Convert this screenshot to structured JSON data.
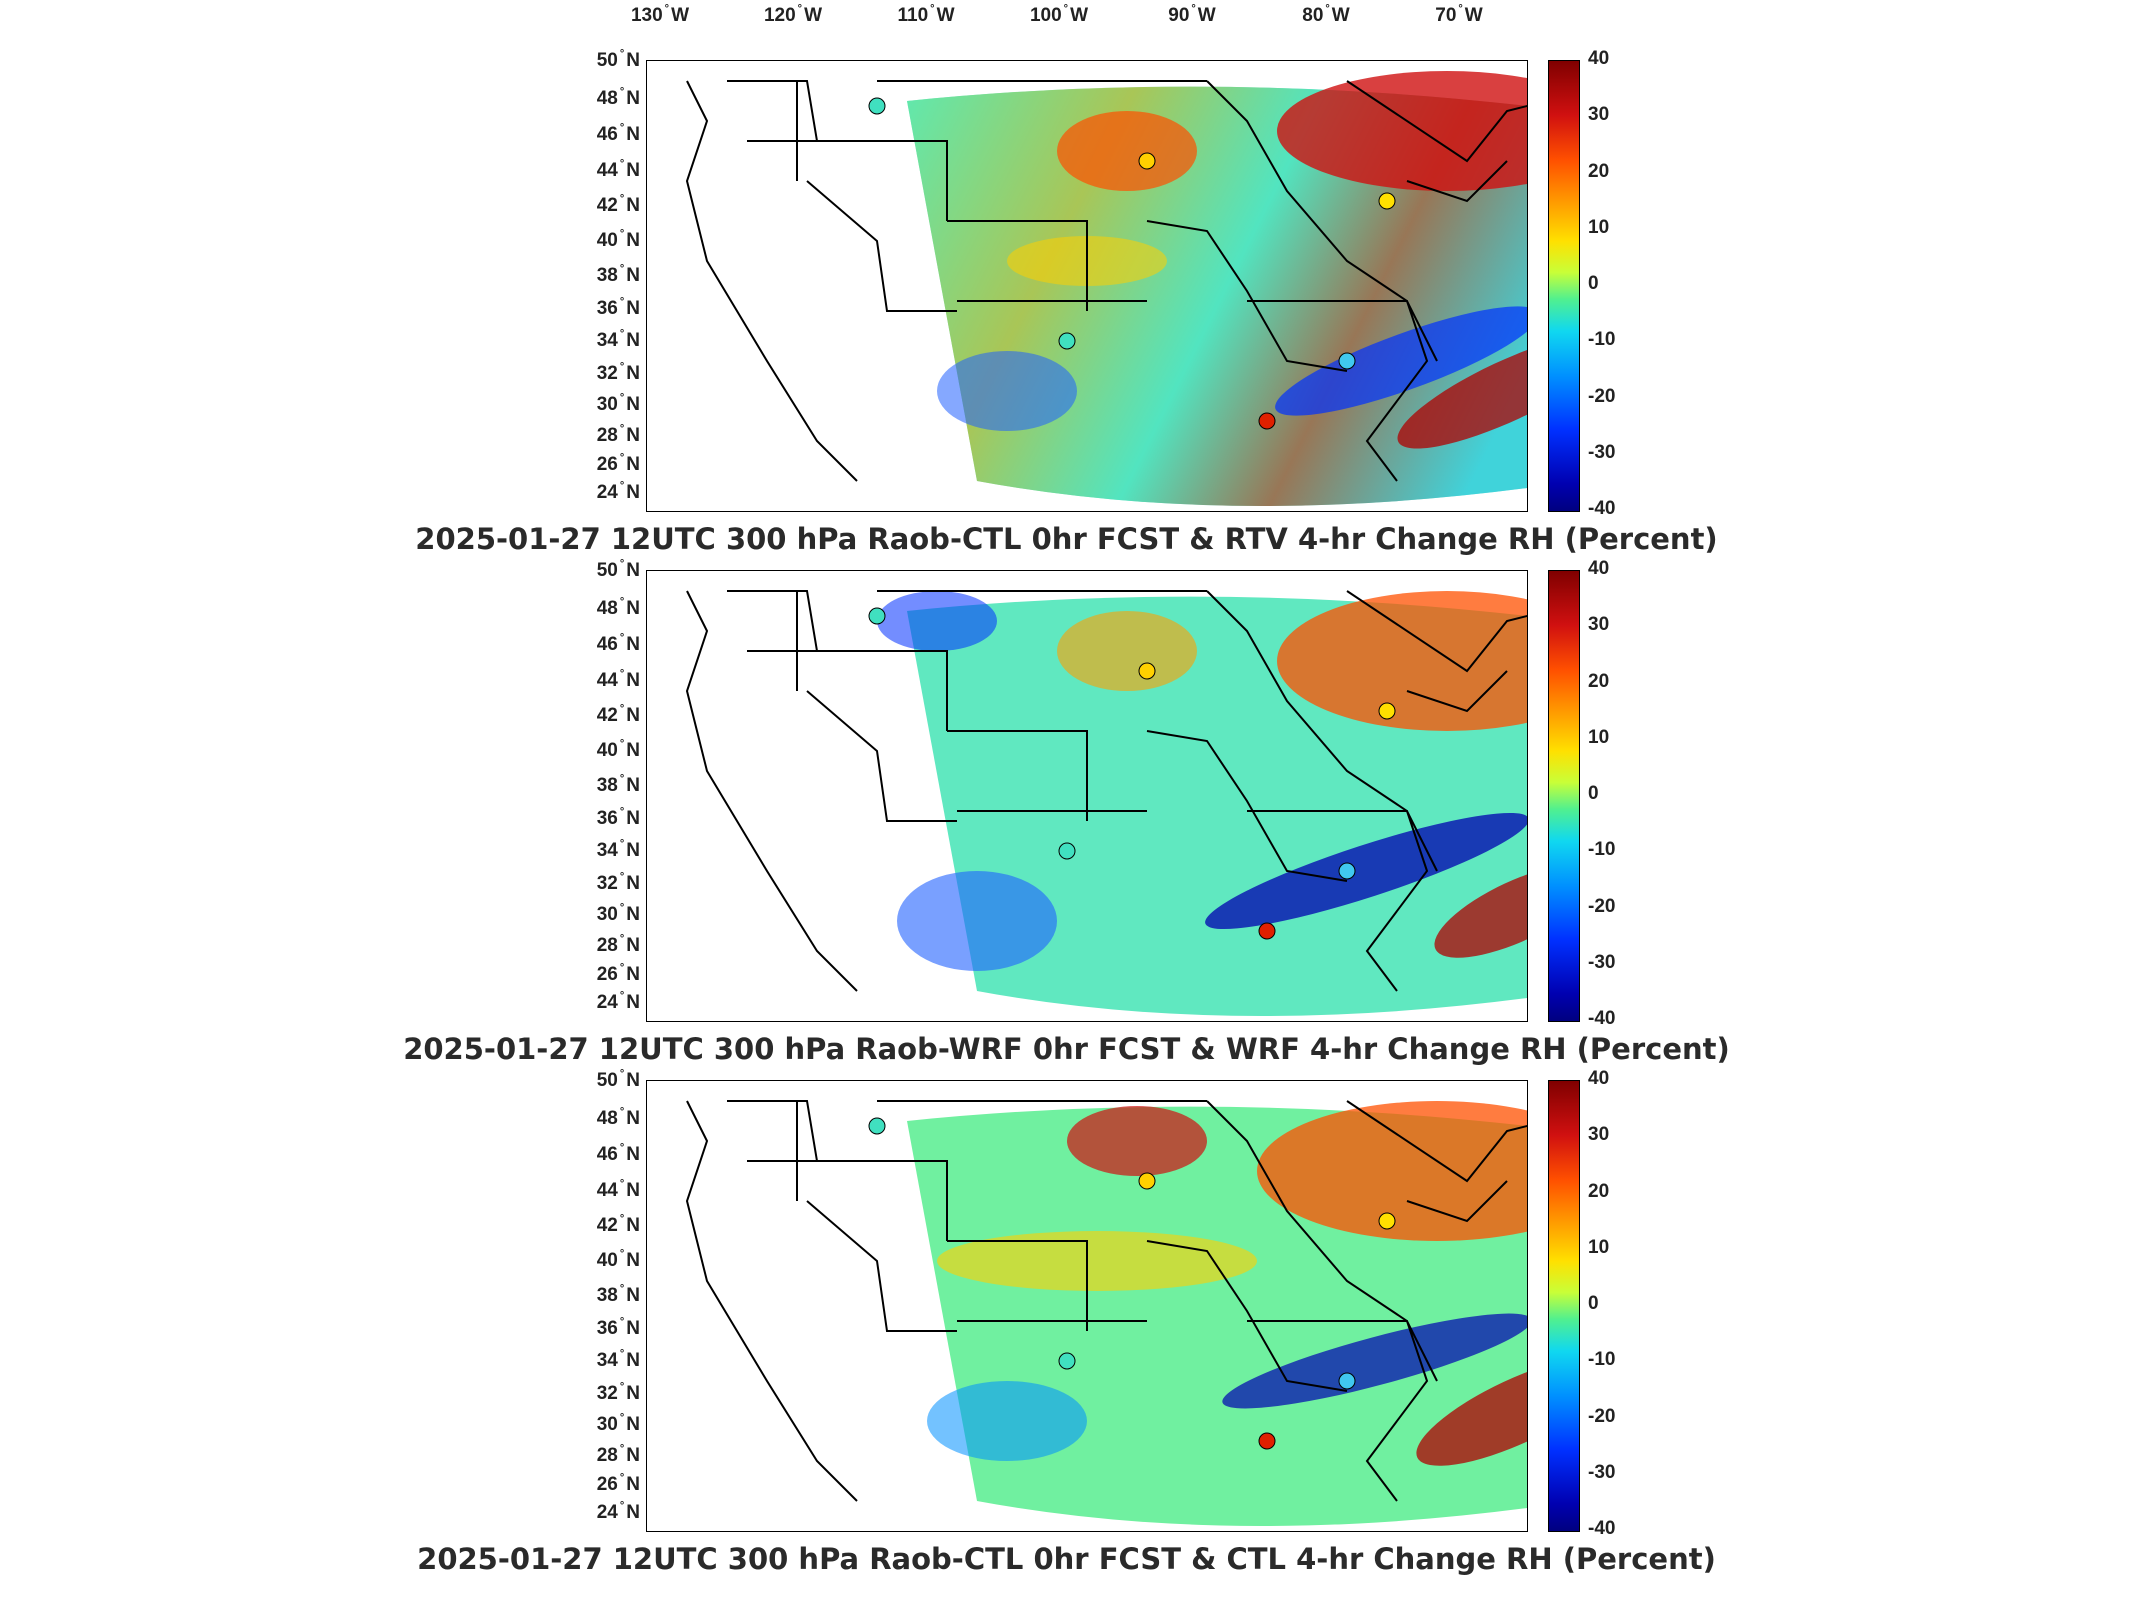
{
  "longitude_labels": [
    {
      "deg": "130",
      "dir": "W"
    },
    {
      "deg": "120",
      "dir": "W"
    },
    {
      "deg": "110",
      "dir": "W"
    },
    {
      "deg": "100",
      "dir": "W"
    },
    {
      "deg": "90",
      "dir": "W"
    },
    {
      "deg": "80",
      "dir": "W"
    },
    {
      "deg": "70",
      "dir": "W"
    }
  ],
  "latitude_labels": [
    {
      "deg": "50",
      "dir": "N"
    },
    {
      "deg": "48",
      "dir": "N"
    },
    {
      "deg": "46",
      "dir": "N"
    },
    {
      "deg": "44",
      "dir": "N"
    },
    {
      "deg": "42",
      "dir": "N"
    },
    {
      "deg": "40",
      "dir": "N"
    },
    {
      "deg": "38",
      "dir": "N"
    },
    {
      "deg": "36",
      "dir": "N"
    },
    {
      "deg": "34",
      "dir": "N"
    },
    {
      "deg": "32",
      "dir": "N"
    },
    {
      "deg": "30",
      "dir": "N"
    },
    {
      "deg": "28",
      "dir": "N"
    },
    {
      "deg": "26",
      "dir": "N"
    },
    {
      "deg": "24",
      "dir": "N"
    }
  ],
  "colorbar": {
    "ticks": [
      "40",
      "30",
      "20",
      "10",
      "0",
      "-10",
      "-20",
      "-30",
      "-40"
    ],
    "colors": [
      "#800000",
      "#d01010",
      "#ff5000",
      "#ffa000",
      "#ffe000",
      "#c8ff38",
      "#50f090",
      "#10d8f0",
      "#0090ff",
      "#0030ff",
      "#0000b0",
      "#000080"
    ]
  },
  "panels": [
    {
      "title": "2025-01-27 12UTC 300 hPa Raob-CTL 0hr FCST & RTV 4-hr Change RH (Percent)"
    },
    {
      "title": "2025-01-27 12UTC 300 hPa Raob-WRF 0hr FCST & WRF 4-hr Change RH (Percent)"
    },
    {
      "title": "2025-01-27 12UTC 300 hPa Raob-CTL 0hr FCST & CTL 4-hr Change RH (Percent)"
    }
  ]
}
